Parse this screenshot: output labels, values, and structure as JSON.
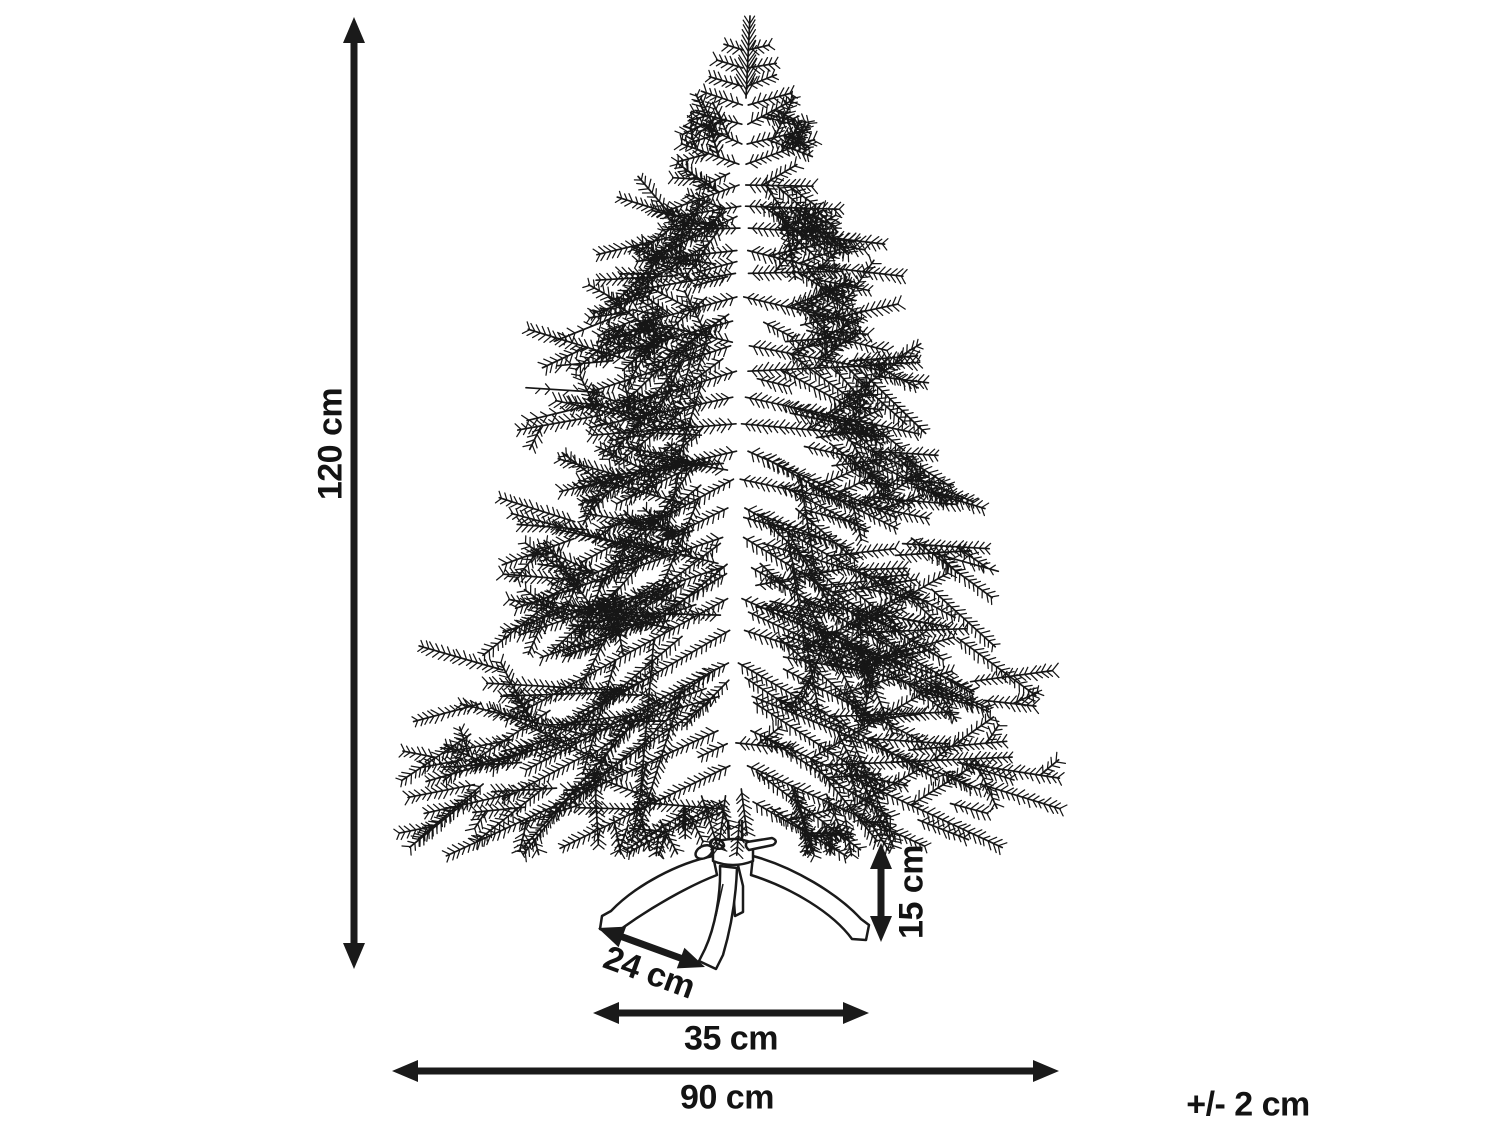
{
  "title": "Christmas tree dimension diagram",
  "colors": {
    "background": "#ffffff",
    "line": "#1a1a1a",
    "tree_line": "#161616"
  },
  "labels": {
    "height": "120 cm",
    "width": "90 cm",
    "stand_width": "35 cm",
    "stand_leg_spacing": "24 cm",
    "stand_height": "15 cm",
    "tolerance": "+/- 2 cm"
  }
}
